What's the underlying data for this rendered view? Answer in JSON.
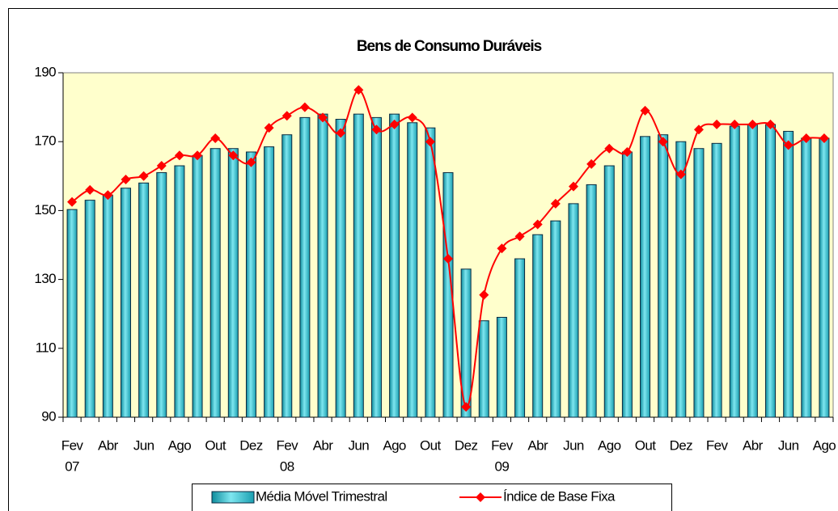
{
  "chart_data": {
    "type": "bar_line",
    "title": "Bens de Consumo Duráveis",
    "categories": [
      "Fev",
      null,
      "Abr",
      null,
      "Jun",
      null,
      "Ago",
      null,
      "Out",
      null,
      "Dez",
      null,
      "Fev",
      null,
      "Abr",
      null,
      "Jun",
      null,
      "Ago",
      null,
      "Out",
      null,
      "Dez",
      null,
      "Fev",
      null,
      "Abr",
      null,
      "Jun",
      null,
      "Ago",
      null,
      "Out",
      null,
      "Dez",
      null,
      "Fev",
      null,
      "Abr",
      null,
      "Jun",
      null,
      "Ago"
    ],
    "category_years": [
      "07",
      null,
      null,
      null,
      null,
      null,
      null,
      null,
      null,
      null,
      null,
      null,
      "08",
      null,
      null,
      null,
      null,
      null,
      null,
      null,
      null,
      null,
      null,
      null,
      "09",
      null,
      null,
      null,
      null,
      null,
      null,
      null,
      null,
      null,
      null,
      null,
      null,
      null,
      null,
      null,
      null,
      null,
      null
    ],
    "series": [
      {
        "name": "Média Móvel Trimestral",
        "kind": "bar",
        "color": "#33c6d6",
        "values": [
          150.3,
          153,
          154.5,
          156.5,
          158,
          161,
          163,
          166,
          168,
          168,
          167,
          168.5,
          172,
          177,
          178,
          176.5,
          178,
          177,
          178,
          175.5,
          174,
          161,
          133,
          118,
          119,
          136,
          143,
          147,
          152,
          157.5,
          163,
          167,
          171.5,
          172,
          170,
          168,
          169.5,
          174.5,
          175,
          175,
          173,
          171,
          171
        ]
      },
      {
        "name": "Índice de Base Fixa",
        "kind": "line",
        "color": "#ff0000",
        "values": [
          152.5,
          156,
          154.5,
          159,
          160,
          163,
          166,
          166,
          171,
          166,
          164,
          174,
          177.5,
          180,
          177,
          172.5,
          185,
          173.5,
          175,
          177,
          170,
          136,
          93,
          125.5,
          139,
          142.5,
          146,
          152,
          157,
          163.5,
          168,
          167,
          179,
          170,
          160.5,
          173.5,
          175,
          175,
          175,
          175,
          169,
          171,
          171
        ]
      }
    ],
    "ylim": [
      90,
      190
    ],
    "yticks": [
      90,
      110,
      130,
      150,
      170,
      190
    ]
  }
}
